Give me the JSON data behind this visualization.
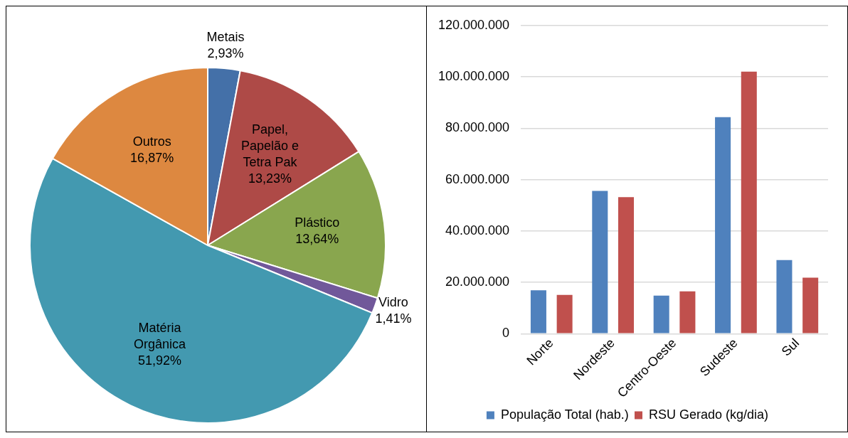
{
  "chart_data": [
    {
      "type": "pie",
      "categories": [
        "Metais",
        "Papel, Papelão e Tetra Pak",
        "Plástico",
        "Vidro",
        "Matéria Orgânica",
        "Outros"
      ],
      "values": [
        2.93,
        13.23,
        13.64,
        1.41,
        51.92,
        16.87
      ],
      "colors": [
        "#4470a8",
        "#ae4a47",
        "#89a64e",
        "#71589a",
        "#4399b0",
        "#dd8840"
      ],
      "value_labels": [
        "2,93%",
        "13,23%",
        "13,64%",
        "1,41%",
        "51,92%",
        "16,87%"
      ],
      "legend": false
    },
    {
      "type": "bar",
      "categories": [
        "Norte",
        "Nordeste",
        "Centro-Oeste",
        "Sudeste",
        "Sul"
      ],
      "series": [
        {
          "name": "População Total (hab.)",
          "color": "#4f81bd",
          "values": [
            16900000,
            55600000,
            14800000,
            84300000,
            28700000
          ]
        },
        {
          "name": "RSU Gerado (kg/dia)",
          "color": "#c0504d",
          "values": [
            15100000,
            53200000,
            16500000,
            102000000,
            21800000
          ]
        }
      ],
      "ylim": [
        0,
        120000000
      ],
      "yticks": [
        {
          "value": 0,
          "label": "0"
        },
        {
          "value": 20000000,
          "label": "20.000.000"
        },
        {
          "value": 40000000,
          "label": "40.000.000"
        },
        {
          "value": 60000000,
          "label": "60.000.000"
        },
        {
          "value": 80000000,
          "label": "80.000.000"
        },
        {
          "value": 100000000,
          "label": "100.000.000"
        },
        {
          "value": 120000000,
          "label": "120.000.000"
        }
      ],
      "grid": "y",
      "legend": "bottom"
    }
  ]
}
